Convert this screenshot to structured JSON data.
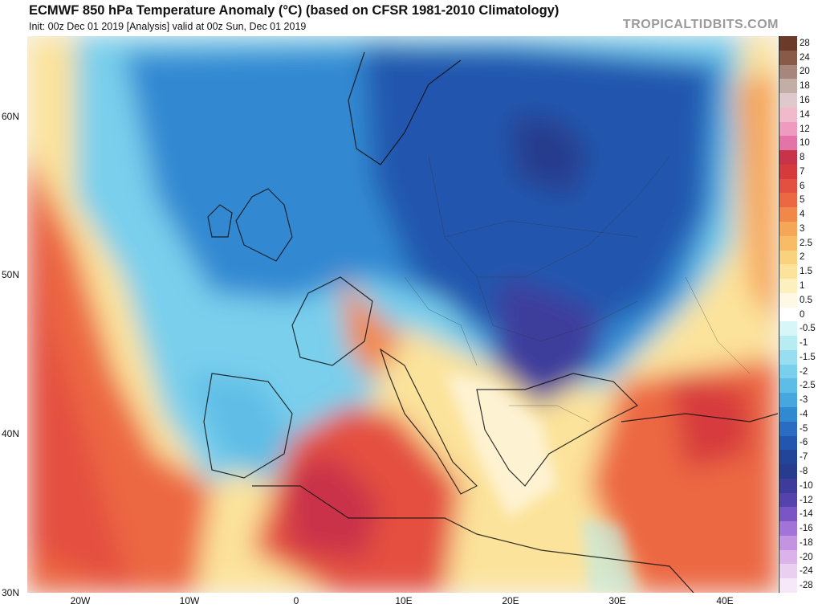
{
  "header": {
    "title": "ECMWF 850 hPa Temperature Anomaly (°C) (based on CFSR 1981-2010 Climatology)",
    "subtitle": "Init: 00z Dec 01 2019   [Analysis]   valid at 00z Sun, Dec 01 2019",
    "credit": "TROPICALTIDBITS.COM"
  },
  "axes": {
    "lat_labels": [
      "60N",
      "50N",
      "40N",
      "30N"
    ],
    "lon_labels": [
      "20W",
      "10W",
      "0",
      "10E",
      "20E",
      "30E",
      "40E"
    ]
  },
  "colorbar": {
    "labels": [
      "28",
      "24",
      "20",
      "18",
      "16",
      "14",
      "12",
      "10",
      "8",
      "7",
      "6",
      "5",
      "4",
      "3",
      "2.5",
      "2",
      "1.5",
      "1",
      "0.5",
      "0",
      "-0.5",
      "-1",
      "-1.5",
      "-2",
      "-2.5",
      "-3",
      "-4",
      "-5",
      "-6",
      "-7",
      "-8",
      "-10",
      "-12",
      "-14",
      "-16",
      "-18",
      "-20",
      "-24",
      "-28"
    ],
    "colors": [
      "#6b3a28",
      "#8a5a48",
      "#a7877b",
      "#c3aea6",
      "#dfc9cc",
      "#f0b9cc",
      "#ee9bbf",
      "#e474a8",
      "#c93349",
      "#d73a3c",
      "#e4503f",
      "#ec6843",
      "#f2874a",
      "#f6a657",
      "#f8bb66",
      "#fad27e",
      "#fce39b",
      "#fdf0bf",
      "#fef8e4",
      "#ffffff",
      "#d6f6f8",
      "#b6ecf2",
      "#97dff0",
      "#79cfec",
      "#5ebde6",
      "#45a7de",
      "#3189d2",
      "#2a6cc2",
      "#2356ae",
      "#224599",
      "#273c8e",
      "#3d3c9c",
      "#5642ad",
      "#7a56c4",
      "#a273d8",
      "#c493e2",
      "#dbb3ea",
      "#ebcff1",
      "#f6e8f8"
    ]
  }
}
